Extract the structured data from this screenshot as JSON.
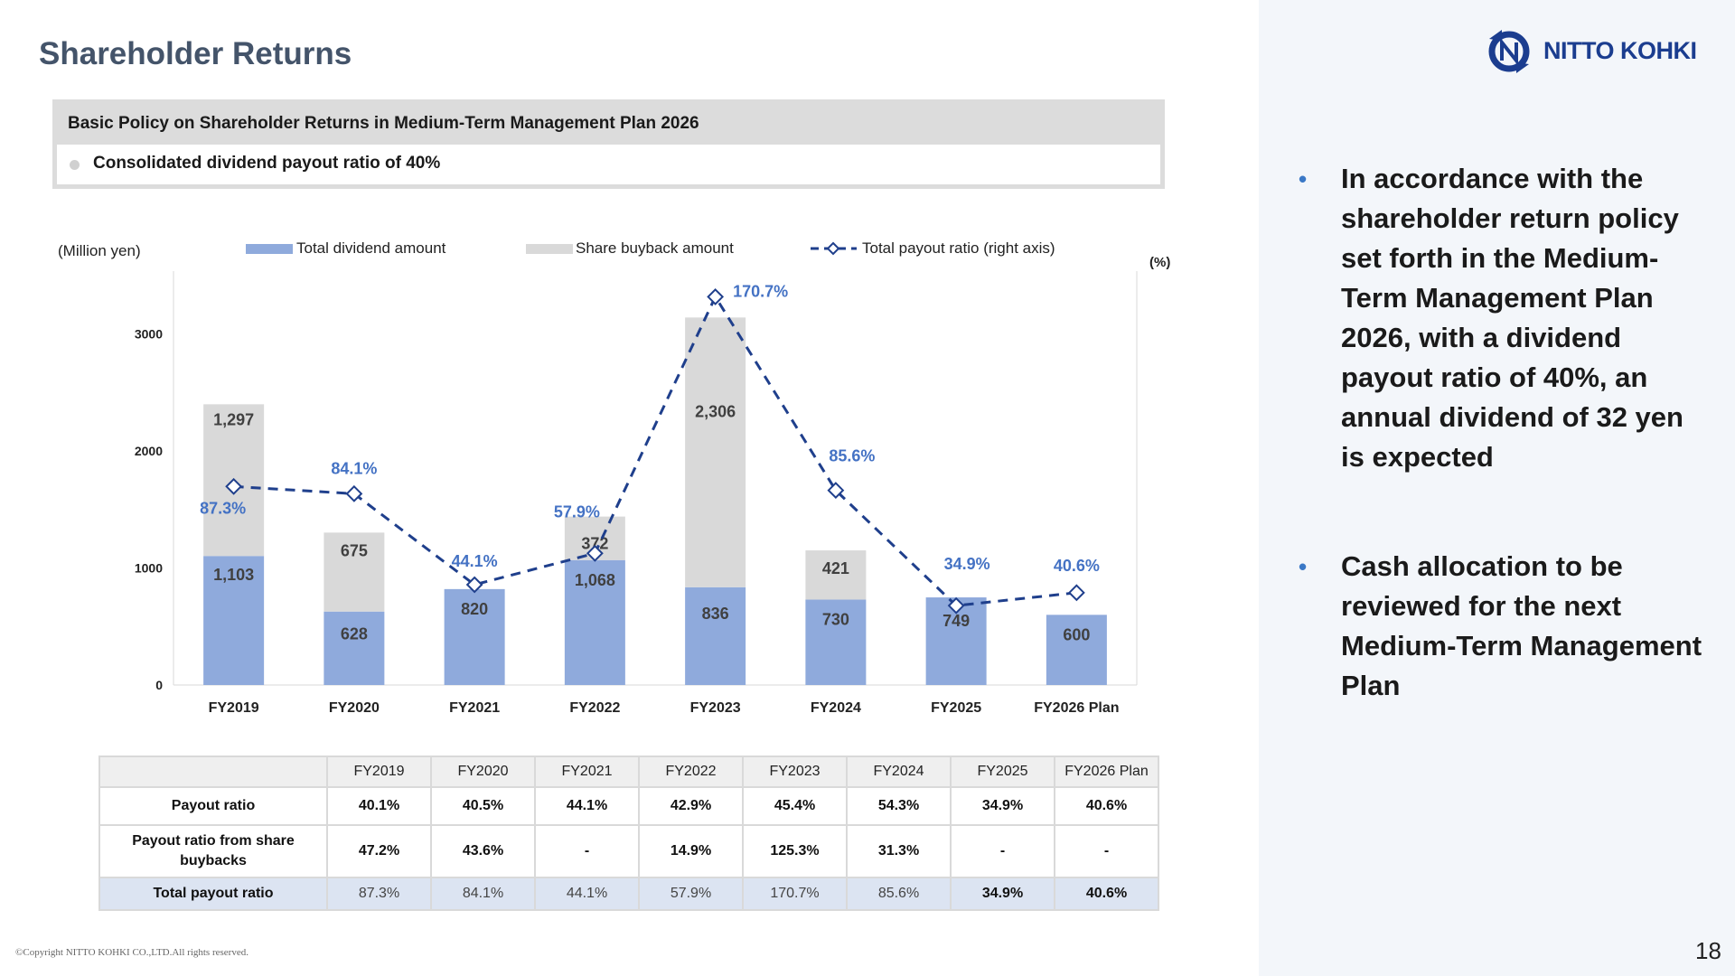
{
  "title": "Shareholder Returns",
  "policy": {
    "heading": "Basic Policy on Shareholder Returns in Medium-Term Management Plan 2026",
    "item": "Consolidated dividend payout ratio of 40%"
  },
  "chart_data": {
    "type": "bar",
    "stacked": true,
    "categories": [
      "FY2019",
      "FY2020",
      "FY2021",
      "FY2022",
      "FY2023",
      "FY2024",
      "FY2025",
      "FY2026 Plan"
    ],
    "ylabel": "(Million yen)",
    "y2label": "(%)",
    "ylim": [
      0,
      3500
    ],
    "yticks": [
      0,
      1000,
      2000,
      3000
    ],
    "y2lim": [
      0,
      180
    ],
    "legend_position": "top",
    "series": [
      {
        "name": "Total dividend amount",
        "type": "bar",
        "color": "#8faadc",
        "values": [
          1103,
          628,
          820,
          1068,
          836,
          730,
          749,
          600
        ],
        "labels": [
          "1,103",
          "628",
          "820",
          "1,068",
          "836",
          "730",
          "749",
          "600"
        ]
      },
      {
        "name": "Share buyback amount",
        "type": "bar",
        "color": "#d9d9d9",
        "values": [
          1297,
          675,
          0,
          372,
          2306,
          421,
          0,
          0
        ],
        "labels": [
          "1,297",
          "675",
          "",
          "372",
          "2,306",
          "421",
          "",
          ""
        ]
      },
      {
        "name": "Total payout ratio  (right axis)",
        "type": "line",
        "axis": "right",
        "color": "#1f3f8c",
        "label_color": "#4472c4",
        "values": [
          87.3,
          84.1,
          44.1,
          57.9,
          170.7,
          85.6,
          34.9,
          40.6
        ],
        "labels": [
          "87.3%",
          "84.1%",
          "44.1%",
          "57.9%",
          "170.7%",
          "85.6%",
          "34.9%",
          "40.6%"
        ]
      }
    ]
  },
  "table": {
    "columns": [
      "FY2019",
      "FY2020",
      "FY2021",
      "FY2022",
      "FY2023",
      "FY2024",
      "FY2025",
      "FY2026 Plan"
    ],
    "rows": [
      {
        "label": "Payout ratio",
        "values": [
          "40.1%",
          "40.5%",
          "44.1%",
          "42.9%",
          "45.4%",
          "54.3%",
          "34.9%",
          "40.6%"
        ]
      },
      {
        "label": "Payout ratio from share buybacks",
        "values": [
          "47.2%",
          "43.6%",
          "-",
          "14.9%",
          "125.3%",
          "31.3%",
          "-",
          "-"
        ]
      },
      {
        "label": "Total payout ratio",
        "values": [
          "87.3%",
          "84.1%",
          "44.1%",
          "57.9%",
          "170.7%",
          "85.6%",
          "34.9%",
          "40.6%"
        ]
      }
    ]
  },
  "bullets": [
    "In accordance with the shareholder return policy set forth in the Medium-Term Management Plan 2026, with a dividend payout ratio of 40%, an annual dividend of 32 yen is expected",
    "Cash allocation to be reviewed for the next Medium-Term Management Plan"
  ],
  "logo": {
    "text": "NITTO KOHKI",
    "icon": "nitto-kohki-logo-icon",
    "color": "#1b3d8f"
  },
  "footer": "©Copyright NITTO KOHKI CO.,LTD.All rights reserved.",
  "page_number": "18"
}
